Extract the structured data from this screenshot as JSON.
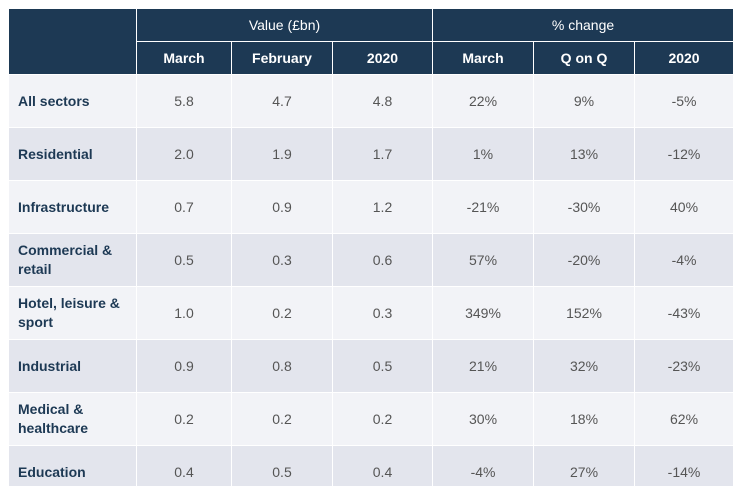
{
  "header": {
    "groups": [
      "Value (£bn)",
      "% change"
    ],
    "columns": [
      "March",
      "February",
      "2020",
      "March",
      "Q on Q",
      "2020"
    ]
  },
  "table": {
    "rows": [
      [
        "All sectors",
        "5.8",
        "4.7",
        "4.8",
        "22%",
        "9%",
        "-5%"
      ],
      [
        "Residential",
        "2.0",
        "1.9",
        "1.7",
        "1%",
        "13%",
        "-12%"
      ],
      [
        "Infrastructure",
        "0.7",
        "0.9",
        "1.2",
        "-21%",
        "-30%",
        "40%"
      ],
      [
        "Commercial & retail",
        "0.5",
        "0.3",
        "0.6",
        "57%",
        "-20%",
        "-4%"
      ],
      [
        "Hotel, leisure & sport",
        "1.0",
        "0.2",
        "0.3",
        "349%",
        "152%",
        "-43%"
      ],
      [
        "Industrial",
        "0.9",
        "0.8",
        "0.5",
        "21%",
        "32%",
        "-23%"
      ],
      [
        "Medical & healthcare",
        "0.2",
        "0.2",
        "0.2",
        "30%",
        "18%",
        "62%"
      ],
      [
        "Education",
        "0.4",
        "0.5",
        "0.4",
        "-4%",
        "27%",
        "-14%"
      ]
    ]
  }
}
